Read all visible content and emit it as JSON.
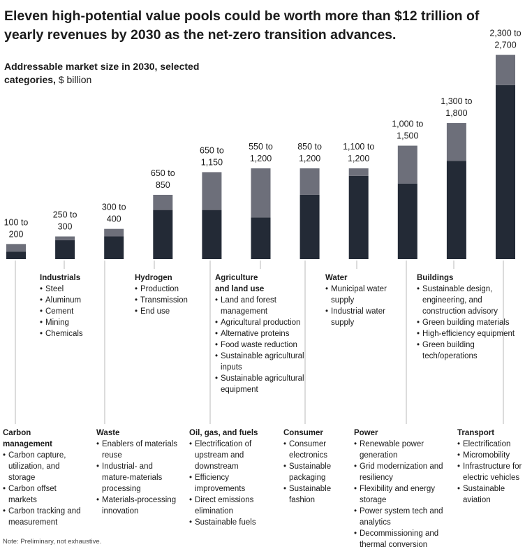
{
  "title": "Eleven high-potential value pools could be worth more than $12 trillion of yearly revenues by 2030 as the net-zero transition advances.",
  "subtitle_bold": "Addressable market size in 2030, selected categories,",
  "subtitle_unit": "$ billion",
  "note": "Note: Preliminary, not exhaustive.",
  "colors": {
    "low": "#232a36",
    "range": "#6d6f7a",
    "line": "#b8b8b8"
  },
  "chart_data": {
    "type": "bar",
    "stacked": true,
    "unit": "$ billion",
    "ylim": [
      0,
      2700
    ],
    "categories": [
      "Carbon management",
      "Industrials",
      "Waste",
      "Hydrogen",
      "Oil, gas, and fuels",
      "Agriculture and land use",
      "Consumer",
      "Water",
      "Power",
      "Buildings",
      "Transport"
    ],
    "series": [
      {
        "values": [
          100,
          250,
          300,
          650,
          650,
          550,
          850,
          1100,
          1000,
          1300,
          2300
        ]
      },
      {
        "values": [
          100,
          50,
          100,
          200,
          500,
          650,
          350,
          100,
          500,
          500,
          400
        ]
      }
    ],
    "labels": [
      [
        "100 to",
        "200"
      ],
      [
        "250 to",
        "300"
      ],
      [
        "300 to",
        "400"
      ],
      [
        "650 to",
        "850"
      ],
      [
        "650 to",
        "1,150"
      ],
      [
        "550 to",
        "1,200"
      ],
      [
        "850 to",
        "1,200"
      ],
      [
        "1,100 to",
        "1,200"
      ],
      [
        "1,000 to",
        "1,500"
      ],
      [
        "1,300 to",
        "1,800"
      ],
      [
        "2,300 to",
        "2,700"
      ]
    ],
    "grid": false,
    "legend": "none"
  },
  "details": [
    {
      "name": [
        "Carbon",
        "management"
      ],
      "items": [
        "Carbon capture, utilization, and storage",
        "Carbon offset markets",
        "Carbon tracking and measurement"
      ]
    },
    {
      "name": [
        "Industrials"
      ],
      "items": [
        "Steel",
        "Aluminum",
        "Cement",
        "Mining",
        "Chemicals"
      ]
    },
    {
      "name": [
        "Waste"
      ],
      "items": [
        "Enablers of materials reuse",
        "Industrial- and mature-materials processing",
        "Materials-processing innovation"
      ]
    },
    {
      "name": [
        "Hydrogen"
      ],
      "items": [
        "Production",
        "Transmission",
        "End use"
      ]
    },
    {
      "name": [
        "Oil, gas, and fuels"
      ],
      "items": [
        "Electrification of upstream and downstream",
        "Efficiency improvements",
        "Direct emissions elimination",
        "Sustainable fuels"
      ]
    },
    {
      "name": [
        "Agriculture",
        "and land use"
      ],
      "items": [
        "Land and forest management",
        "Agricultural production",
        "Alternative proteins",
        "Food waste reduction",
        "Sustainable agricultural inputs",
        "Sustainable agricultural equipment"
      ]
    },
    {
      "name": [
        "Consumer"
      ],
      "items": [
        "Consumer electronics",
        "Sustainable packaging",
        "Sustainable fashion"
      ]
    },
    {
      "name": [
        "Water"
      ],
      "items": [
        "Municipal water supply",
        "Industrial water supply"
      ]
    },
    {
      "name": [
        "Power"
      ],
      "items": [
        "Renewable power generation",
        "Grid modernization and resiliency",
        "Flexibility and energy storage",
        "Power system tech and analytics",
        "Decommissioning and thermal conversion"
      ]
    },
    {
      "name": [
        "Buildings"
      ],
      "items": [
        "Sustainable design, engineering, and construction advisory",
        "Green building materials",
        "High-efficiency equipment",
        "Green building tech/operations"
      ]
    },
    {
      "name": [
        "Transport"
      ],
      "items": [
        "Electrification",
        "Micromobility",
        "Infrastructure for electric vehicles",
        "Sustainable aviation"
      ]
    }
  ]
}
